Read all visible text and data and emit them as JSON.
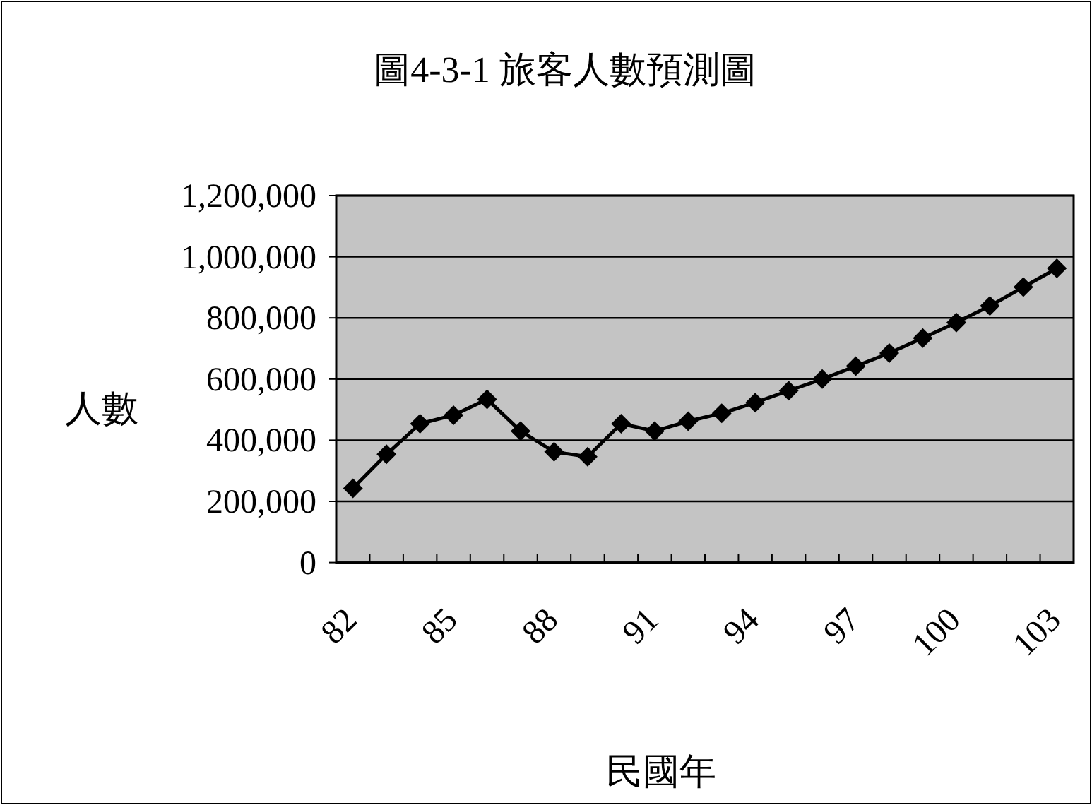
{
  "chart_data": {
    "type": "line",
    "title": "圖4-3-1 旅客人數預測圖",
    "xlabel": "民國年",
    "ylabel": "人數",
    "categories": [
      "82",
      null,
      null,
      "85",
      null,
      null,
      "88",
      null,
      null,
      "91",
      null,
      null,
      "94",
      null,
      null,
      "97",
      null,
      null,
      "100",
      null,
      null,
      "103"
    ],
    "series": [
      {
        "color": "#000000",
        "values": [
          243000,
          354000,
          454000,
          482000,
          534000,
          430000,
          362000,
          346000,
          454000,
          430000,
          462000,
          488000,
          523000,
          562000,
          600000,
          642000,
          685000,
          734000,
          785000,
          839000,
          901000,
          962000
        ]
      }
    ],
    "ylim": [
      0,
      1200000
    ],
    "yticks": [
      {
        "value": 0,
        "label": "0"
      },
      {
        "value": 200000,
        "label": "200,000"
      },
      {
        "value": 400000,
        "label": "400,000"
      },
      {
        "value": 600000,
        "label": "600,000"
      },
      {
        "value": 800000,
        "label": "800,000"
      },
      {
        "value": 1000000,
        "label": "1,000,000"
      },
      {
        "value": 1200000,
        "label": "1,200,000"
      }
    ],
    "grid": "y",
    "marker": "diamond",
    "line_style": "solid"
  }
}
